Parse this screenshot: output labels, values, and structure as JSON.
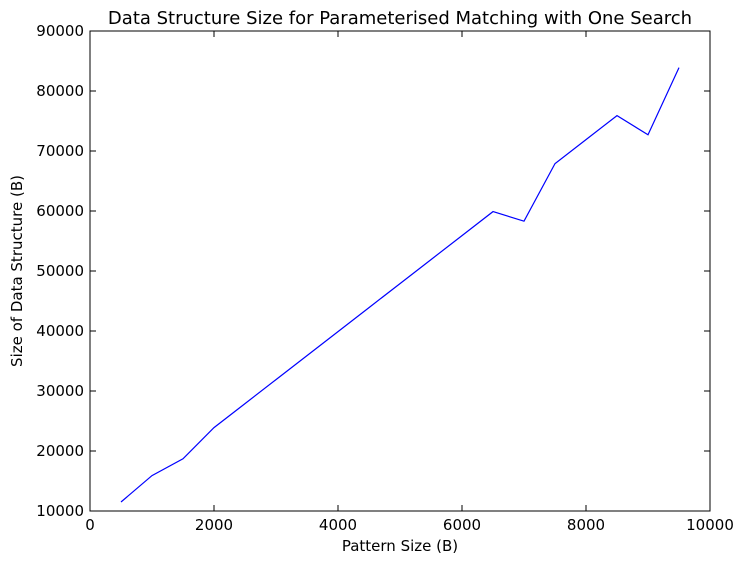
{
  "chart_data": {
    "type": "line",
    "title": "Data Structure Size for Parameterised Matching with One Search",
    "xlabel": "Pattern Size (B)",
    "ylabel": "Size of Data Structure (B)",
    "xlim": [
      0,
      10000
    ],
    "ylim": [
      10000,
      90000
    ],
    "xticks": [
      0,
      2000,
      4000,
      6000,
      8000,
      10000
    ],
    "yticks": [
      10000,
      20000,
      30000,
      40000,
      50000,
      60000,
      70000,
      80000,
      90000
    ],
    "grid": false,
    "series": [
      {
        "color": "#0000ff",
        "x": [
          500,
          1000,
          1500,
          2000,
          2500,
          3000,
          3500,
          4000,
          4500,
          5000,
          5500,
          6000,
          6500,
          7000,
          7500,
          8000,
          8500,
          9000,
          9500
        ],
        "y": [
          11500,
          15900,
          18700,
          23900,
          27900,
          31900,
          35900,
          39900,
          43900,
          47900,
          51900,
          55900,
          59900,
          58300,
          67900,
          71900,
          75900,
          72700,
          83900
        ]
      }
    ]
  }
}
